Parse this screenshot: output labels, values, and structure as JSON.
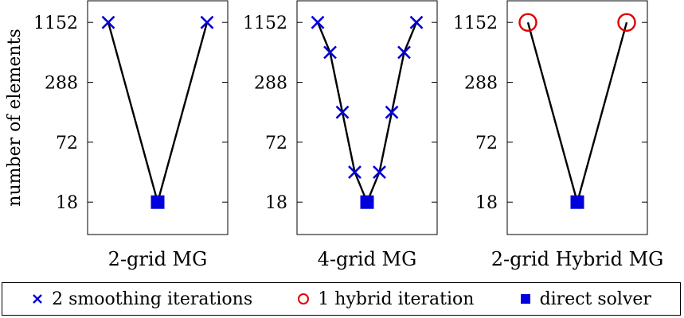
{
  "chart_data": {
    "type": "line",
    "ylabel": "number of elements",
    "yscale": "log",
    "yticks": [
      18,
      72,
      288,
      1152
    ],
    "ytick_labels": [
      "18",
      "72",
      "288",
      "1152"
    ],
    "ylim": [
      8.5,
      1900
    ],
    "grid": false,
    "legend_placement": "bottom",
    "colors": {
      "cross": "#0000dd",
      "circle": "#e00000",
      "square": "#0000dd",
      "line": "#000000"
    },
    "panels": [
      {
        "xlabel": "2-grid MG",
        "points": [
          {
            "step": 1,
            "elements": 1152,
            "marker": "cross"
          },
          {
            "step": 2,
            "elements": 18,
            "marker": "square"
          },
          {
            "step": 3,
            "elements": 1152,
            "marker": "cross"
          }
        ]
      },
      {
        "xlabel": "4-grid MG",
        "points": [
          {
            "step": 1,
            "elements": 1152,
            "marker": "cross"
          },
          {
            "step": 2,
            "elements": 576,
            "marker": "cross"
          },
          {
            "step": 3,
            "elements": 144,
            "marker": "cross"
          },
          {
            "step": 4,
            "elements": 36,
            "marker": "cross"
          },
          {
            "step": 5,
            "elements": 18,
            "marker": "square"
          },
          {
            "step": 6,
            "elements": 36,
            "marker": "cross"
          },
          {
            "step": 7,
            "elements": 144,
            "marker": "cross"
          },
          {
            "step": 8,
            "elements": 576,
            "marker": "cross"
          },
          {
            "step": 9,
            "elements": 1152,
            "marker": "cross"
          }
        ]
      },
      {
        "xlabel": "2-grid Hybrid MG",
        "points": [
          {
            "step": 1,
            "elements": 1152,
            "marker": "circle"
          },
          {
            "step": 2,
            "elements": 18,
            "marker": "square"
          },
          {
            "step": 3,
            "elements": 1152,
            "marker": "circle"
          }
        ]
      }
    ],
    "legend": [
      {
        "marker": "cross",
        "label": "2 smoothing iterations"
      },
      {
        "marker": "circle",
        "label": "1 hybrid iteration"
      },
      {
        "marker": "square",
        "label": "direct solver"
      }
    ]
  }
}
